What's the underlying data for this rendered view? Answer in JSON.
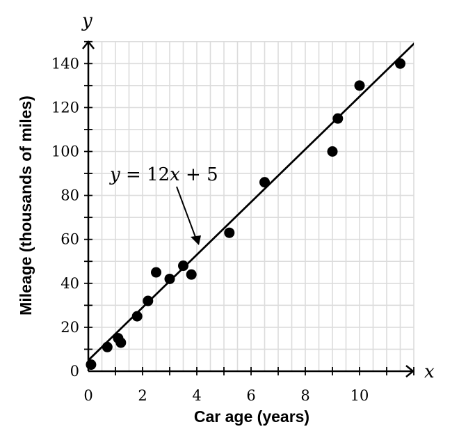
{
  "chart_data": {
    "type": "scatter",
    "xlabel": "Car age (years)",
    "ylabel": "Mileage (thousands of miles)",
    "x_var": "x",
    "y_var": "y",
    "xlim": [
      0,
      12
    ],
    "ylim": [
      0,
      150
    ],
    "x_ticks": [
      0,
      2,
      4,
      6,
      8,
      10
    ],
    "y_ticks": [
      0,
      20,
      40,
      60,
      80,
      100,
      120,
      140
    ],
    "grid": true,
    "points": [
      {
        "x": 0.1,
        "y": 3
      },
      {
        "x": 0.7,
        "y": 11
      },
      {
        "x": 1.1,
        "y": 15
      },
      {
        "x": 1.2,
        "y": 13
      },
      {
        "x": 1.8,
        "y": 25
      },
      {
        "x": 2.2,
        "y": 32
      },
      {
        "x": 2.5,
        "y": 45
      },
      {
        "x": 3.0,
        "y": 42
      },
      {
        "x": 3.5,
        "y": 48
      },
      {
        "x": 3.8,
        "y": 44
      },
      {
        "x": 5.2,
        "y": 63
      },
      {
        "x": 6.5,
        "y": 86
      },
      {
        "x": 9.0,
        "y": 100
      },
      {
        "x": 9.2,
        "y": 115
      },
      {
        "x": 10.0,
        "y": 130
      },
      {
        "x": 11.5,
        "y": 140
      }
    ],
    "fit_line": {
      "slope": 12,
      "intercept": 5
    },
    "annotation": {
      "lhs": "y",
      "eq": " = 12",
      "var": "x",
      "rest": " + 5"
    }
  }
}
